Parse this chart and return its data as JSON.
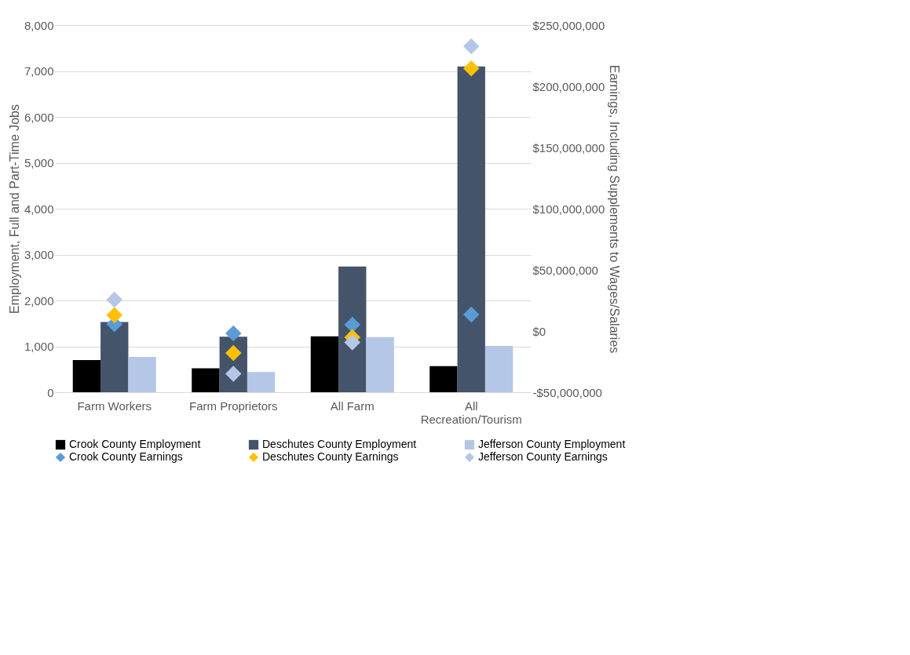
{
  "chart_data": {
    "type": "bar",
    "ylabel": "Employment, Full and Part-Time Jobs",
    "y2label": "Earnings, Including Supplements to Wages/Salaries",
    "categories": [
      "Farm Workers",
      "Farm Proprietors",
      "All Farm",
      "All Recreation/Tourism"
    ],
    "series": [
      {
        "name": "Crook County Employment",
        "color": "#000000",
        "type": "bar",
        "values": [
          700,
          520,
          1220,
          570
        ]
      },
      {
        "name": "Deschutes County Employment",
        "color": "#44546a",
        "type": "bar",
        "values": [
          1530,
          1210,
          2740,
          7100
        ]
      },
      {
        "name": "Jefferson County Employment",
        "color": "#b4c7e7",
        "type": "bar",
        "values": [
          770,
          440,
          1200,
          1010
        ]
      },
      {
        "name": "Crook County Earnings",
        "color": "#5b9bd5",
        "type": "scatter",
        "axis": "y2",
        "marker": "diamond",
        "values": [
          5600000,
          -1900000,
          5100000,
          13500000
        ]
      },
      {
        "name": "Deschutes County Earnings",
        "color": "#ffc000",
        "type": "scatter",
        "axis": "y2",
        "marker": "diamond",
        "values": [
          13000000,
          -18000000,
          -5100000,
          214600000
        ]
      },
      {
        "name": "Jefferson County Earnings",
        "color": "#b4c7e7",
        "type": "scatter",
        "axis": "y2",
        "marker": "diamond",
        "values": [
          25700000,
          -35000000,
          -9300000,
          232700000
        ]
      }
    ],
    "ylim": [
      0,
      8000
    ],
    "yticks": [
      0,
      {
        "value": 1000,
        "label": "1,000"
      },
      {
        "value": 2000,
        "label": "2,000"
      },
      {
        "value": 3000,
        "label": "3,000"
      },
      {
        "value": 4000,
        "label": "4,000"
      },
      {
        "value": 5000,
        "label": "5,000"
      },
      {
        "value": 6000,
        "label": "6,000"
      },
      {
        "value": 7000,
        "label": "7,000"
      },
      {
        "value": 8000,
        "label": "8,000"
      }
    ],
    "y2lim": [
      -50000000,
      250000000
    ],
    "y2ticks": [
      {
        "value": -50000000,
        "label": "-$50,000,000"
      },
      {
        "value": 0,
        "label": "$0"
      },
      {
        "value": 50000000,
        "label": "$50,000,000"
      },
      {
        "value": 100000000,
        "label": "$100,000,000"
      },
      {
        "value": 150000000,
        "label": "$150,000,000"
      },
      {
        "value": 200000000,
        "label": "$200,000,000"
      },
      {
        "value": 250000000,
        "label": "$250,000,000"
      }
    ],
    "grid": "y",
    "legend": "bottom"
  }
}
